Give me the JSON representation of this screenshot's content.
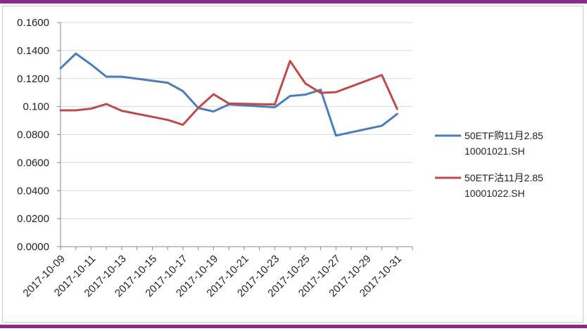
{
  "chart_data": {
    "type": "line",
    "title": "",
    "xlabel": "",
    "ylabel": "",
    "ylim": [
      0,
      0.16
    ],
    "y_ticks": [
      "0.0000",
      "0.0200",
      "0.0400",
      "0.0600",
      "0.0800",
      "0.100",
      "0.1200",
      "0.1400",
      "0.1600"
    ],
    "x_tick_labels": [
      "2017-10-09",
      "2017-10-11",
      "2017-10-13",
      "2017-10-15",
      "2017-10-17",
      "2017-10-19",
      "2017-10-21",
      "2017-10-23",
      "2017-10-25",
      "2017-10-27",
      "2017-10-29",
      "2017-10-31"
    ],
    "x": [
      "2017-10-09",
      "2017-10-10",
      "2017-10-11",
      "2017-10-12",
      "2017-10-13",
      "2017-10-16",
      "2017-10-17",
      "2017-10-18",
      "2017-10-19",
      "2017-10-20",
      "2017-10-23",
      "2017-10-24",
      "2017-10-25",
      "2017-10-26",
      "2017-10-27",
      "2017-10-30",
      "2017-10-31"
    ],
    "grid": "horizontal",
    "legend_position": "right",
    "series": [
      {
        "name": "50ETF购11月2.85 10001021.SH",
        "legend_lines": [
          "50ETF购11月2.85",
          "10001021.SH"
        ],
        "color": "#4a7ebb",
        "values": [
          0.1273,
          0.1378,
          0.13,
          0.1213,
          0.1213,
          0.117,
          0.111,
          0.099,
          0.0965,
          0.1015,
          0.0995,
          0.1075,
          0.1085,
          0.112,
          0.0793,
          0.0863,
          0.0947
        ]
      },
      {
        "name": "50ETF沽11月2.85 10001022.SH",
        "legend_lines": [
          "50ETF沽11月2.85",
          "10001022.SH"
        ],
        "color": "#be4b48",
        "values": [
          0.0973,
          0.0973,
          0.0985,
          0.1018,
          0.097,
          0.0905,
          0.087,
          0.099,
          0.1088,
          0.1022,
          0.1015,
          0.1325,
          0.1165,
          0.1098,
          0.1103,
          0.1225,
          0.0983
        ]
      }
    ]
  }
}
